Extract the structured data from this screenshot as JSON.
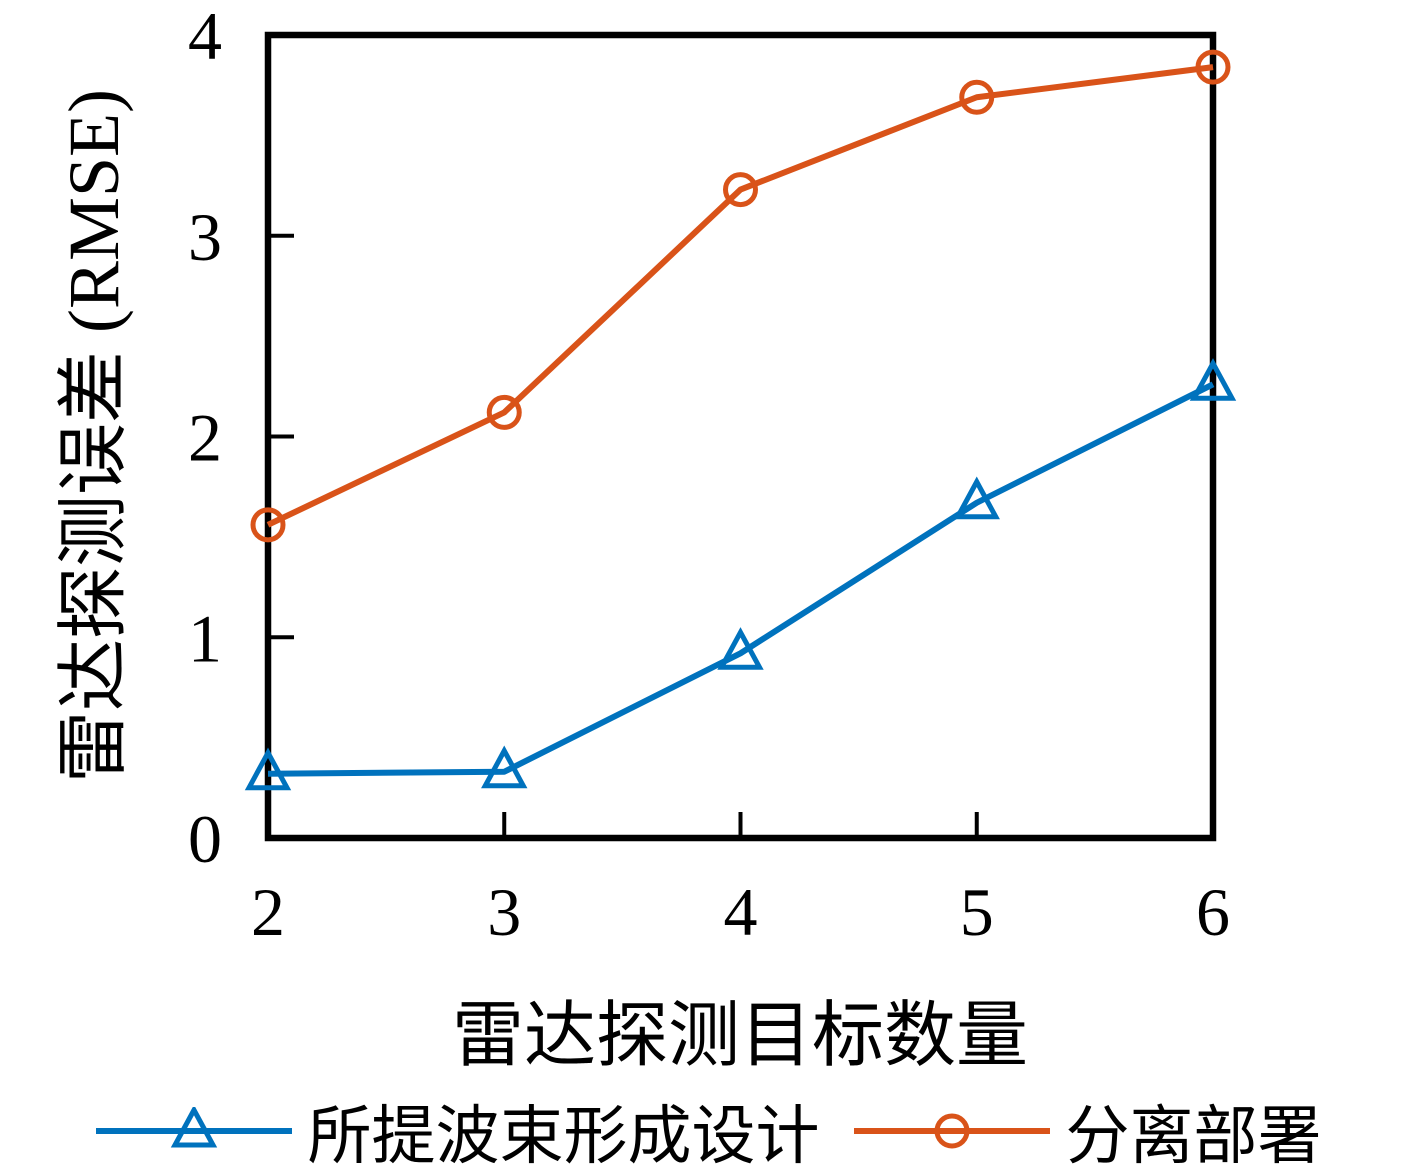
{
  "figure": {
    "background": "#ffffff",
    "axis_color": "#000000"
  },
  "chart_data": {
    "type": "line",
    "title": "",
    "xlabel": "雷达探测目标数量",
    "ylabel": "雷达探测误差 (RMSE)",
    "x": [
      2,
      3,
      4,
      5,
      6
    ],
    "xlim": [
      2,
      6
    ],
    "ylim": [
      0,
      4
    ],
    "xticks": [
      "2",
      "3",
      "4",
      "5",
      "6"
    ],
    "yticks": [
      "0",
      "1",
      "2",
      "3",
      "4"
    ],
    "grid": false,
    "legend_position": "bottom",
    "series": [
      {
        "name": "所提波束形成设计",
        "color": "#0072BD",
        "marker": "triangle",
        "values": [
          0.32,
          0.33,
          0.92,
          1.67,
          2.26
        ]
      },
      {
        "name": "分离部署",
        "color": "#D95319",
        "marker": "circle",
        "values": [
          1.56,
          2.12,
          3.23,
          3.69,
          3.84
        ]
      }
    ]
  }
}
